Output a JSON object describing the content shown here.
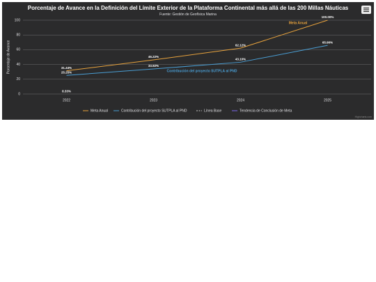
{
  "chart_data": {
    "type": "line",
    "title": "Porcentaje de Avance en la Definición del Límite Exterior de la Plataforma Continental más allá de las 200 Millas Náuticas",
    "subtitle": "Fuente: Gestión de Geofísica Marina",
    "y_axis_label": "Porcentaje de Avance",
    "categories": [
      "2022",
      "2023",
      "2024",
      "2025"
    ],
    "ylim": [
      0,
      100
    ],
    "yticks": [
      0,
      20,
      40,
      60,
      80,
      100
    ],
    "grid": true,
    "series": [
      {
        "name": "Meta Anual",
        "color": "#e8a33d",
        "values": [
          31.44,
          46.22,
          62.12,
          100.0
        ],
        "value_labels": [
          "31.44%",
          "46.22%",
          "62.12%",
          "100.00%"
        ]
      },
      {
        "name": "Contribución del proyecto SUTPLA al PND",
        "color": "#4a9fd5",
        "values": [
          25.25,
          33.92,
          43.1,
          65.9
        ],
        "value_labels": [
          "25.25%",
          "33.92%",
          "43.10%",
          "65.90%"
        ]
      },
      {
        "name": "Línea Base",
        "color": "#cccccc",
        "dashed": true,
        "values": [
          8.33,
          null,
          null,
          null
        ],
        "value_labels": [
          "8.33%",
          null,
          null,
          null
        ]
      },
      {
        "name": "Tendencia de Conclusión de Meta",
        "color": "#7b68ee",
        "values": [
          null,
          null,
          null,
          null
        ]
      }
    ],
    "annotations": [
      {
        "text": "Meta Anual",
        "color": "#e8a33d"
      },
      {
        "text": "Contribución del proyecto SUTPLA al PND",
        "color": "#4a9fd5"
      }
    ],
    "credits": "Highcharts.com"
  }
}
